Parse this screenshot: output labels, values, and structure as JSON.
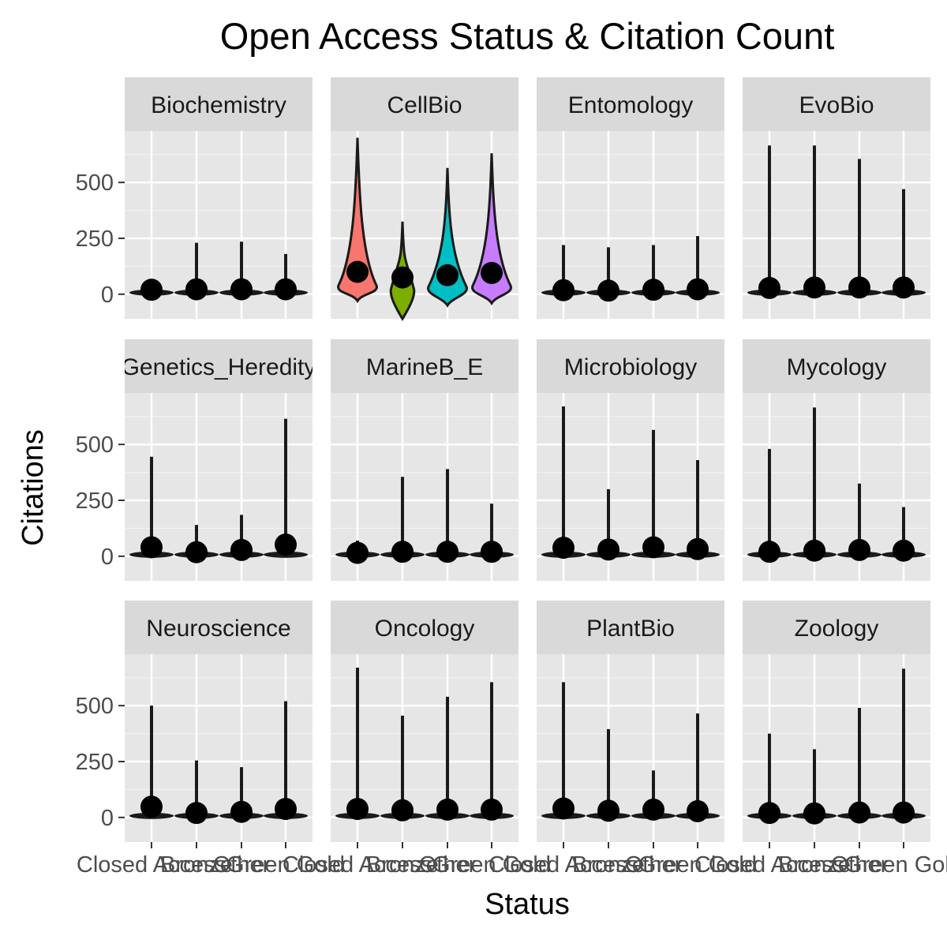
{
  "chart_data": {
    "type": "violin",
    "title": "Open Access Status & Citation Count",
    "xlabel": "Status",
    "ylabel": "Citations",
    "categories": [
      "Closed Access",
      "Bronze",
      "Other",
      "Green Gold"
    ],
    "ylim": [
      -110,
      730
    ],
    "yticks": [
      0,
      250,
      500
    ],
    "grid": true,
    "legend": "none",
    "panel_background": "#e6e6e6",
    "strip_background": "#d9d9d9",
    "fill_colors": [
      "#f8766d",
      "#7cae00",
      "#00bfc4",
      "#c77cff"
    ],
    "panels": [
      {
        "name": "Biochemistry",
        "max": [
          25,
          230,
          235,
          180
        ],
        "min": [
          0,
          0,
          0,
          0
        ],
        "mean": [
          20,
          22,
          22,
          22
        ]
      },
      {
        "name": "CellBio",
        "max": [
          700,
          325,
          565,
          630
        ],
        "min": [
          -30,
          -110,
          -50,
          -40
        ],
        "mean": [
          100,
          75,
          85,
          95
        ],
        "filled": true
      },
      {
        "name": "Entomology",
        "max": [
          220,
          210,
          220,
          260
        ],
        "min": [
          0,
          0,
          0,
          0
        ],
        "mean": [
          18,
          16,
          20,
          22
        ]
      },
      {
        "name": "EvoBio",
        "max": [
          665,
          665,
          605,
          470
        ],
        "min": [
          0,
          0,
          0,
          0
        ],
        "mean": [
          28,
          30,
          30,
          30
        ]
      },
      {
        "name": "Genetics_Heredity",
        "max": [
          445,
          140,
          185,
          615
        ],
        "min": [
          0,
          0,
          0,
          0
        ],
        "mean": [
          40,
          18,
          28,
          52
        ]
      },
      {
        "name": "MarineB_E",
        "max": [
          70,
          355,
          390,
          235
        ],
        "min": [
          0,
          0,
          0,
          0
        ],
        "mean": [
          15,
          20,
          20,
          20
        ]
      },
      {
        "name": "Microbiology",
        "max": [
          670,
          300,
          565,
          430
        ],
        "min": [
          0,
          0,
          0,
          0
        ],
        "mean": [
          38,
          30,
          40,
          32
        ]
      },
      {
        "name": "Mycology",
        "max": [
          480,
          665,
          325,
          220
        ],
        "min": [
          0,
          0,
          0,
          0
        ],
        "mean": [
          20,
          25,
          28,
          25
        ]
      },
      {
        "name": "Neuroscience",
        "max": [
          500,
          255,
          225,
          520
        ],
        "min": [
          0,
          0,
          0,
          0
        ],
        "mean": [
          48,
          20,
          25,
          38
        ]
      },
      {
        "name": "Oncology",
        "max": [
          670,
          455,
          540,
          605
        ],
        "min": [
          0,
          0,
          0,
          0
        ],
        "mean": [
          38,
          32,
          35,
          35
        ]
      },
      {
        "name": "PlantBio",
        "max": [
          605,
          395,
          210,
          465
        ],
        "min": [
          0,
          0,
          0,
          0
        ],
        "mean": [
          40,
          30,
          35,
          28
        ]
      },
      {
        "name": "Zoology",
        "max": [
          375,
          305,
          490,
          665
        ],
        "min": [
          0,
          0,
          0,
          0
        ],
        "mean": [
          20,
          18,
          22,
          22
        ]
      }
    ]
  }
}
